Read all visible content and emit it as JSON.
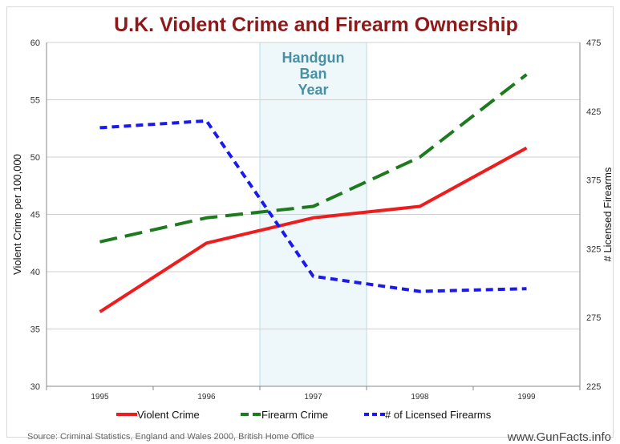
{
  "chart_data": {
    "type": "line",
    "title": "U.K. Violent Crime and Firearm Ownership",
    "categories": [
      "1995",
      "1996",
      "1997",
      "1998",
      "1999"
    ],
    "ylabel": "Violent Crime per 100,000",
    "ylim": [
      30,
      60
    ],
    "yticks": [
      "30",
      "35",
      "40",
      "45",
      "50",
      "55",
      "60"
    ],
    "y2label": "# Licensed Firearms",
    "y2lim": [
      225,
      475
    ],
    "y2ticks": [
      "225",
      "275",
      "325",
      "375",
      "425",
      "475"
    ],
    "grid": true,
    "legend_position": "bottom",
    "series": [
      {
        "name": "Violent Crime",
        "axis": "left",
        "color": "#ee1c1c",
        "style": "solid",
        "values": [
          36.5,
          42.5,
          44.7,
          45.7,
          50.8
        ]
      },
      {
        "name": "Firearm Crime",
        "axis": "left",
        "color": "#1e7a1e",
        "style": "dashed",
        "values": [
          42.6,
          44.7,
          45.7,
          50.0,
          57.2
        ]
      },
      {
        "name": "# of Licensed Firearms",
        "axis": "right",
        "color": "#1a1aee",
        "style": "dotted",
        "values": [
          413,
          418,
          305,
          294,
          296
        ]
      }
    ],
    "annotation": {
      "lines": [
        "Handgun",
        "Ban",
        "Year"
      ],
      "color": "#4a90a4"
    },
    "source": "Source: Criminal Statistics, England and Wales 2000, British Home Office",
    "site": "www.GunFacts.info"
  }
}
